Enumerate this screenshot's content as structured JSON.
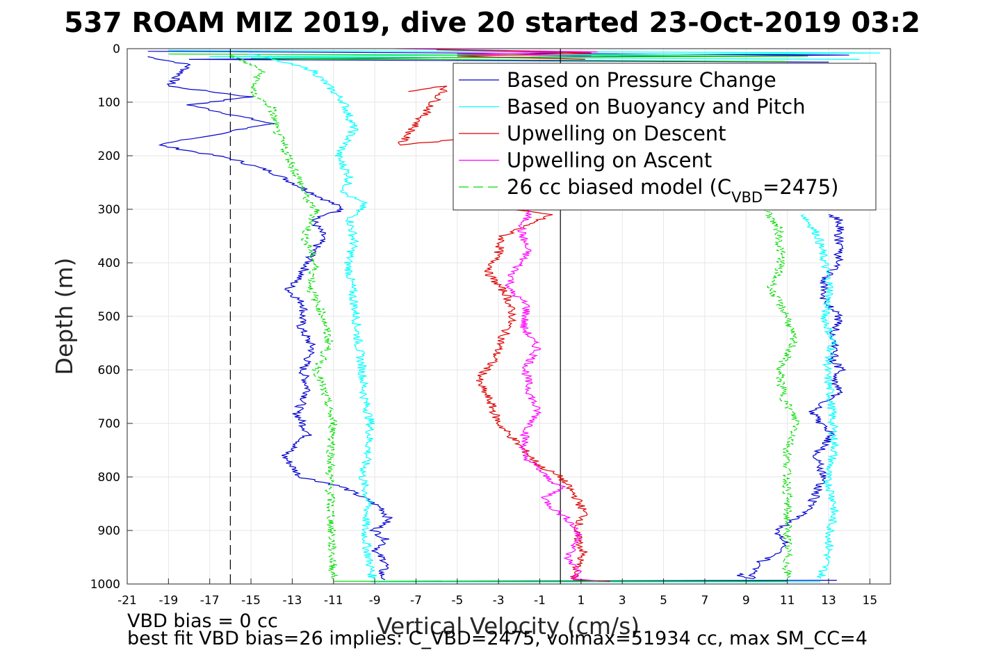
{
  "title": "537 ROAM MIZ 2019, dive 20 started 23-Oct-2019 03:2",
  "footer": {
    "line1": "VBD bias = 0 cc",
    "line2": "best fit VBD bias=26 implies: C_VBD=2475, volmax=51934 cc, max SM_CC=4"
  },
  "chart_data": {
    "type": "line",
    "xlabel": "Vertical Velocity (cm/s)",
    "ylabel": "Depth (m)",
    "xlim": [
      -21,
      16
    ],
    "ylim": [
      0,
      1000
    ],
    "y_reversed": true,
    "grid": true,
    "xticks": [
      -21,
      -19,
      -17,
      -15,
      -13,
      -11,
      -9,
      -7,
      -5,
      -3,
      -1,
      1,
      3,
      5,
      7,
      9,
      11,
      13,
      15
    ],
    "yticks": [
      0,
      100,
      200,
      300,
      400,
      500,
      600,
      700,
      800,
      900,
      1000
    ],
    "legend_position": "top-right",
    "reference_lines": [
      {
        "orientation": "vertical",
        "x": -16,
        "style": "dashed",
        "color": "#000000"
      },
      {
        "orientation": "vertical",
        "x": 0,
        "style": "solid",
        "color": "#000000"
      }
    ],
    "legend": [
      {
        "text": "Based on Pressure Change",
        "color": "#0000cc",
        "dash": "solid"
      },
      {
        "text": "Based on Buoyancy and Pitch",
        "color": "#00ffff",
        "dash": "solid"
      },
      {
        "text": "Upwelling on Descent",
        "color": "#dd0000",
        "dash": "solid"
      },
      {
        "text": "Upwelling on Ascent",
        "color": "#ff00ff",
        "dash": "solid"
      },
      {
        "text_main": "26 cc biased model (C",
        "text_sub": "VBD",
        "text_tail": "=2475)",
        "color": "#00dd00",
        "dash": "dashed"
      }
    ],
    "series": [
      {
        "key": "pressure_descent",
        "color": "#0000cc",
        "x": [
          -20,
          -18,
          -19,
          -15,
          -18,
          -14,
          -19.5,
          -16,
          -14,
          -13,
          -12,
          -11,
          -10.5,
          -12,
          -11.5,
          -12,
          -12.5,
          -13.2,
          -12.4,
          -12.6,
          -12,
          -12.5,
          -12.2,
          -12.8,
          -12.2,
          -13.4,
          -13,
          -12.6,
          -12,
          -11.5,
          -11.2,
          -10.5,
          -9.5,
          -8.6,
          -8.3,
          -9,
          -8.4,
          -9,
          -8.4,
          -8.7,
          -8.5
        ],
        "y": [
          15,
          30,
          70,
          90,
          105,
          140,
          180,
          205,
          230,
          250,
          270,
          290,
          300,
          320,
          350,
          380,
          420,
          450,
          480,
          520,
          560,
          600,
          640,
          680,
          720,
          760,
          780,
          800,
          805,
          810,
          812,
          820,
          840,
          860,
          880,
          900,
          920,
          940,
          960,
          980,
          992
        ]
      },
      {
        "key": "pressure_ascent",
        "color": "#0000cc",
        "x": [
          8.5,
          9.2,
          9.6,
          10.2,
          10.8,
          11,
          10.4,
          11.4,
          12,
          12.3,
          12.5,
          12.8,
          12.6,
          12.4,
          12.8,
          13.2,
          12.6,
          12.2,
          12.8,
          13.6,
          13.2,
          13.6,
          13.2,
          13.4,
          13.2,
          13.5,
          12.8,
          12.8,
          13.5,
          13.5,
          13.6,
          13
        ],
        "y": [
          980,
          990,
          960,
          950,
          940,
          920,
          900,
          880,
          860,
          840,
          820,
          800,
          780,
          760,
          740,
          720,
          700,
          680,
          660,
          640,
          620,
          600,
          580,
          560,
          540,
          500,
          470,
          430,
          400,
          350,
          320,
          310
        ]
      },
      {
        "key": "buoyancy_descent",
        "color": "#00ffff",
        "x": [
          -15,
          -12,
          -11,
          -10.5,
          -10,
          -10.8,
          -10.2,
          -10.5,
          -9.5,
          -10.2,
          -10,
          -10.3,
          -10.1,
          -9.9,
          -9.8,
          -9.6,
          -9.5,
          -9.2,
          -9.3,
          -9.6,
          -9.3,
          -9.5,
          -9.3,
          -9.1
        ],
        "y": [
          10,
          40,
          80,
          100,
          150,
          200,
          240,
          270,
          290,
          320,
          360,
          400,
          450,
          500,
          550,
          600,
          650,
          700,
          750,
          800,
          850,
          900,
          950,
          990
        ]
      },
      {
        "key": "buoyancy_ascent",
        "color": "#00ffff",
        "x": [
          11.8,
          12.5,
          12.8,
          13.1,
          12.8,
          13.2,
          12.9,
          13.1,
          13.2,
          13.3,
          12.9,
          13.3,
          13.1,
          13,
          12.8,
          12.6
        ],
        "y": [
          310,
          350,
          400,
          450,
          500,
          550,
          600,
          650,
          700,
          750,
          800,
          850,
          900,
          940,
          970,
          990
        ]
      },
      {
        "key": "upwelling_descent",
        "color": "#dd0000",
        "x": [
          -7.5,
          -5.5,
          -7.8,
          -5,
          -3.5,
          -2.5,
          -0.5,
          -2.8,
          -3,
          -3.5,
          -2.6,
          -2.3,
          -2.8,
          -3.2,
          -4,
          -3.4,
          -3,
          -2,
          -1,
          0,
          0.8,
          1.2,
          0.7,
          1.1,
          0.6
        ],
        "y": [
          80,
          70,
          180,
          170,
          260,
          300,
          310,
          350,
          380,
          420,
          460,
          500,
          540,
          580,
          620,
          660,
          700,
          740,
          780,
          800,
          840,
          870,
          900,
          940,
          990
        ]
      },
      {
        "key": "upwelling_ascent",
        "color": "#ff00ff",
        "x": [
          -1.5,
          -1.9,
          -1.6,
          -2.3,
          -2.5,
          -1.6,
          -1.8,
          -1.1,
          -1.7,
          -1.5,
          -1.1,
          -1.7,
          -1.8,
          -1.2,
          -0.7,
          0.1,
          -0.8,
          -0.3,
          0.4,
          0.8,
          0.9,
          0.3,
          1.0,
          0.5
        ],
        "y": [
          300,
          340,
          380,
          420,
          450,
          480,
          520,
          560,
          600,
          640,
          680,
          720,
          760,
          780,
          800,
          820,
          840,
          860,
          880,
          900,
          920,
          950,
          980,
          990
        ]
      },
      {
        "key": "model_descent",
        "color": "#00dd00",
        "dash": "dashed",
        "x": [
          -16,
          -14.5,
          -15,
          -14,
          -13.8,
          -13.2,
          -12.6,
          -12.2,
          -11.8,
          -12.4,
          -11.9,
          -12.1,
          -11.5,
          -11.2,
          -11.8,
          -11.4,
          -11.0,
          -11.2,
          -11.1,
          -11.0
        ],
        "y": [
          12,
          40,
          80,
          110,
          150,
          200,
          250,
          290,
          300,
          350,
          400,
          450,
          500,
          550,
          600,
          650,
          700,
          800,
          900,
          990
        ]
      },
      {
        "key": "model_ascent",
        "color": "#00dd00",
        "dash": "dashed",
        "x": [
          10,
          10.6,
          10.7,
          10.2,
          11,
          11.3,
          10.6,
          10.8,
          11.5,
          11.0,
          11.0,
          11.0,
          11.0
        ],
        "y": [
          300,
          340,
          400,
          450,
          500,
          550,
          600,
          650,
          700,
          750,
          850,
          950,
          990
        ]
      }
    ],
    "surface_series": [
      {
        "color": "#0000cc",
        "x": [
          -20,
          14,
          -18,
          13
        ],
        "y": [
          5,
          12,
          20,
          25
        ]
      },
      {
        "color": "#00ffff",
        "x": [
          -19,
          15.5,
          -17,
          14.5
        ],
        "y": [
          3,
          8,
          15,
          20
        ]
      },
      {
        "color": "#00dd00",
        "x": [
          -19,
          12,
          -15,
          11
        ],
        "y": [
          10,
          14,
          18,
          24
        ]
      },
      {
        "color": "#ff00ff",
        "x": [
          -8,
          1.8,
          -5,
          1.5
        ],
        "y": [
          0,
          6,
          10,
          14
        ]
      },
      {
        "color": "#dd0000",
        "x": [
          -6,
          1.5,
          -5,
          1.2
        ],
        "y": [
          2,
          8,
          14,
          20
        ]
      }
    ],
    "bottom_series": [
      {
        "color": "#0000cc",
        "x": [
          -8.5,
          13.4
        ],
        "y": [
          995,
          993
        ]
      },
      {
        "color": "#00ffff",
        "x": [
          -9.2,
          12.6
        ],
        "y": [
          996,
          996
        ]
      },
      {
        "color": "#00dd00",
        "x": [
          -11,
          11
        ],
        "y": [
          995,
          995
        ]
      },
      {
        "color": "#dd0000",
        "x": [
          0.6,
          2.4
        ],
        "y": [
          992,
          995
        ]
      },
      {
        "color": "#ff00ff",
        "x": [
          0.5,
          1.8
        ],
        "y": [
          990,
          994
        ]
      }
    ]
  }
}
